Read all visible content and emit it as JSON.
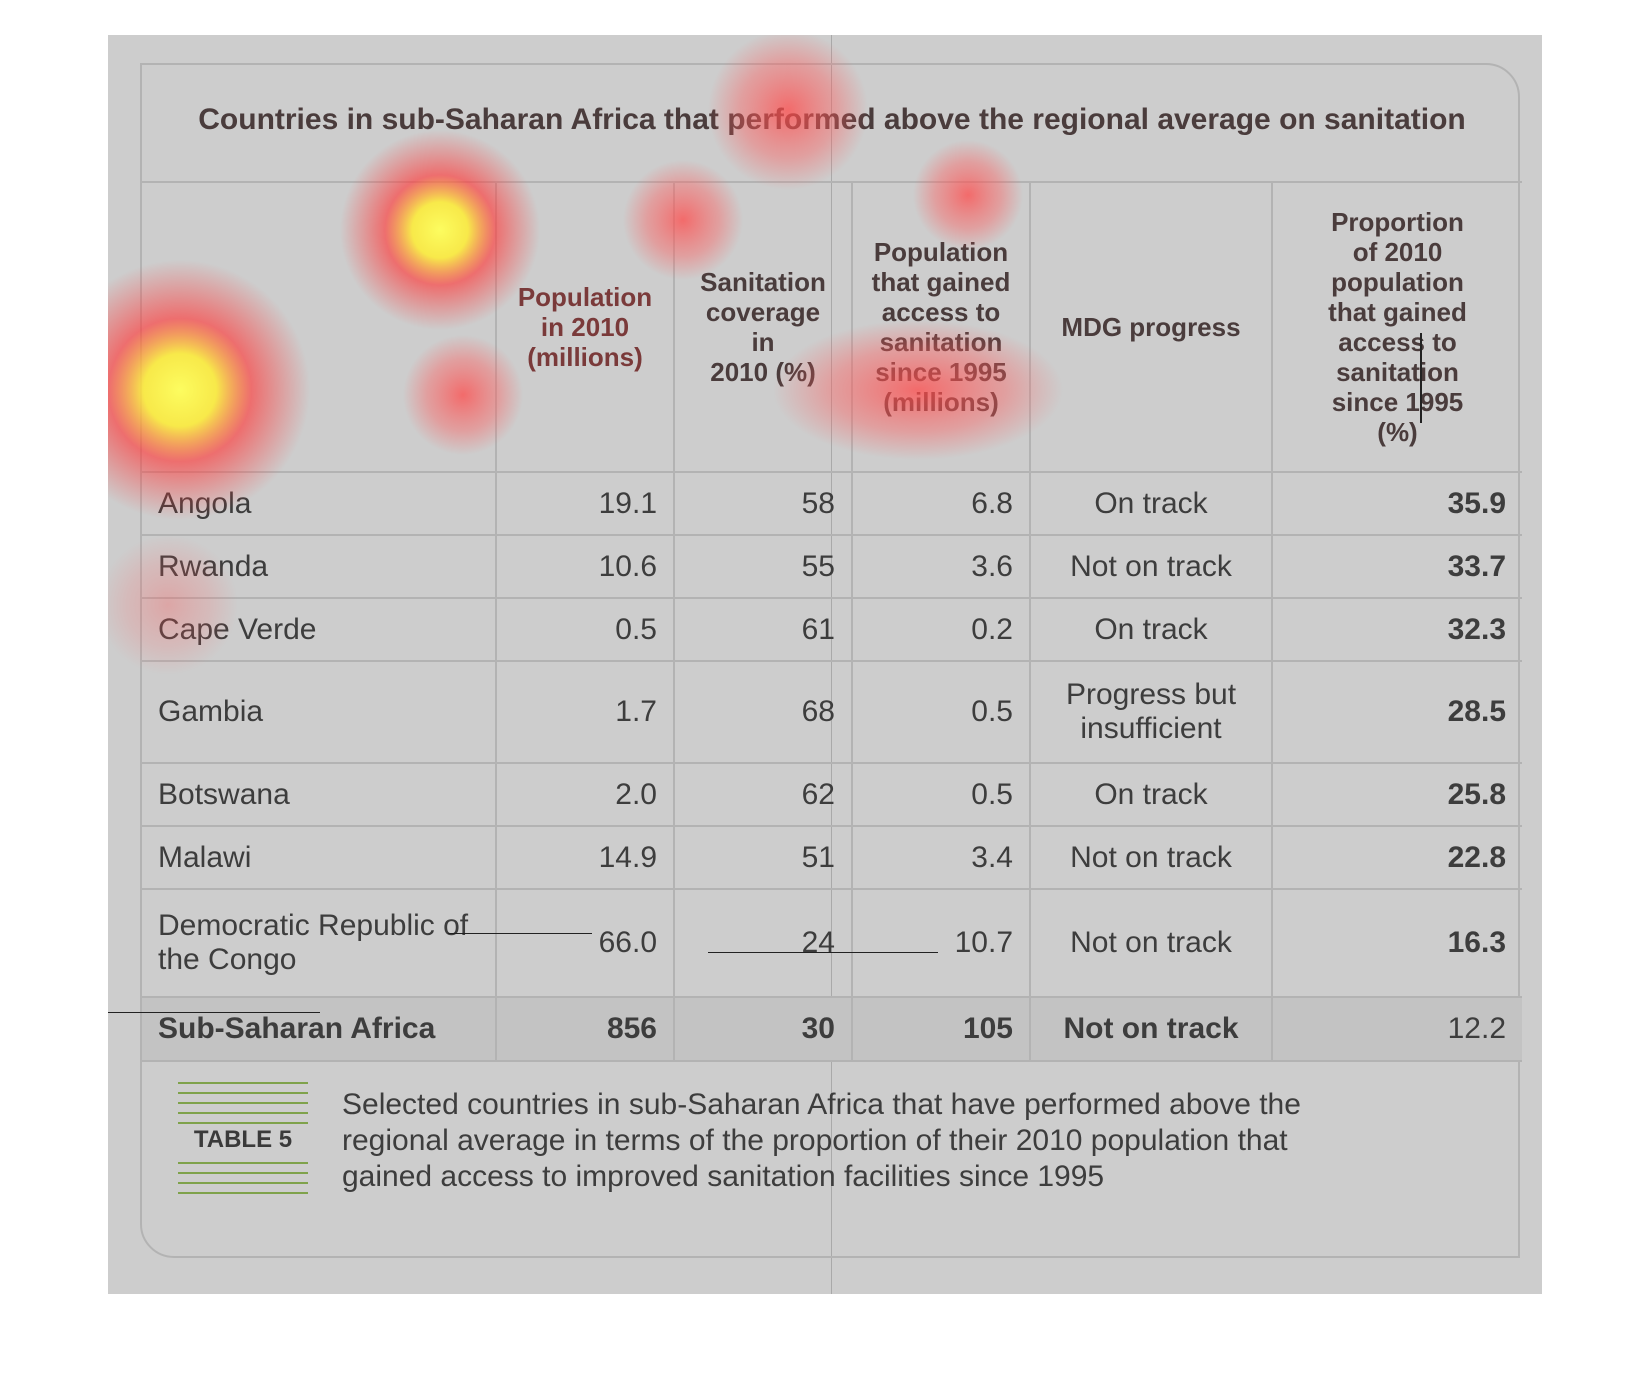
{
  "title": "Countries in sub-Saharan Africa that performed above the regional average on sanitation",
  "table": {
    "headers": [
      "",
      "Population\nin 2010\n(millions)",
      "Sanitation\ncoverage in\n2010 (%)",
      "Population\nthat gained\naccess to\nsanitation\nsince 1995\n(millions)",
      "MDG progress",
      "Proportion\nof 2010\npopulation\nthat gained\naccess to\nsanitation\nsince 1995\n(%)"
    ],
    "rows": [
      {
        "country": "Angola",
        "population": "19.1",
        "coverage": "58",
        "gained": "6.8",
        "progress": "On track",
        "proportion": "35.9"
      },
      {
        "country": "Rwanda",
        "population": "10.6",
        "coverage": "55",
        "gained": "3.6",
        "progress": "Not on track",
        "proportion": "33.7"
      },
      {
        "country": "Cape Verde",
        "population": "0.5",
        "coverage": "61",
        "gained": "0.2",
        "progress": "On track",
        "proportion": "32.3"
      },
      {
        "country": "Gambia",
        "population": "1.7",
        "coverage": "68",
        "gained": "0.5",
        "progress": "Progress but\ninsufficient",
        "proportion": "28.5"
      },
      {
        "country": "Botswana",
        "population": "2.0",
        "coverage": "62",
        "gained": "0.5",
        "progress": "On track",
        "proportion": "25.8"
      },
      {
        "country": "Malawi",
        "population": "14.9",
        "coverage": "51",
        "gained": "3.4",
        "progress": "Not on track",
        "proportion": "22.8"
      },
      {
        "country": "Democratic Republic of\nthe Congo",
        "population": "66.0",
        "coverage": "24",
        "gained": "10.7",
        "progress": "Not on track",
        "proportion": "16.3"
      }
    ],
    "total": {
      "country": "Sub-Saharan Africa",
      "population": "856",
      "coverage": "30",
      "gained": "105",
      "progress": "Not on track",
      "proportion": "12.2"
    }
  },
  "badge": "TABLE 5",
  "caption": "Selected countries in sub-Saharan Africa that have performed above the\nregional average in terms of the proportion of their 2010 population that\ngained access to improved sanitation facilities since 1995",
  "colors": {
    "heat_hot": "#ffff33",
    "heat_mid": "#ff3b3b",
    "badge_stripe": "#7fa24b"
  }
}
